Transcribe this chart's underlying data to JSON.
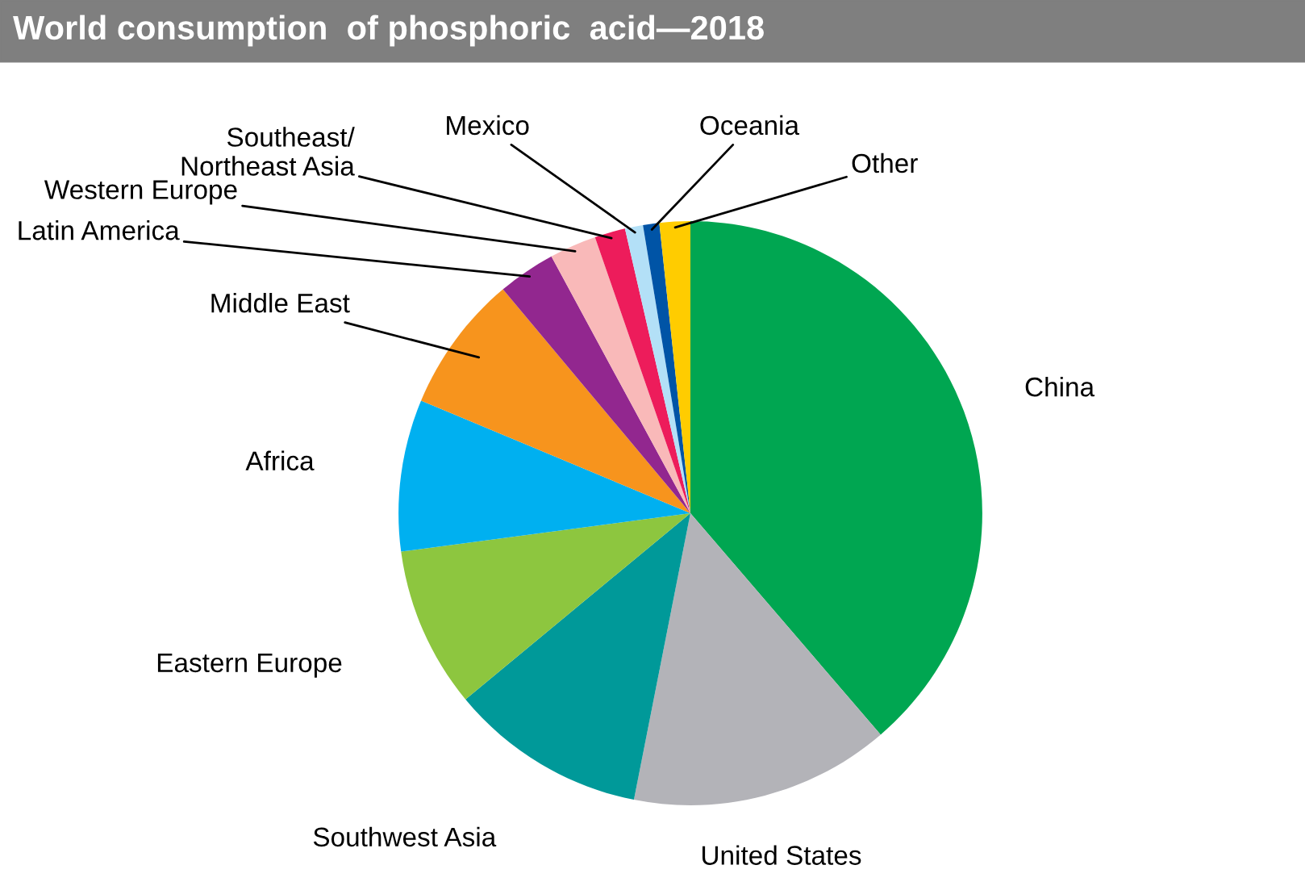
{
  "chart_data": {
    "type": "pie",
    "title": "World consumption  of phosphoric  acid—2018",
    "categories": [
      "China",
      "United States",
      "Southwest Asia",
      "Eastern Europe",
      "Africa",
      "Middle East",
      "Latin America",
      "Western Europe",
      "Southeast/\nNortheast Asia",
      "Mexico",
      "Oceania",
      "Other"
    ],
    "values": [
      38.7,
      14.4,
      10.9,
      8.9,
      8.4,
      7.6,
      3.2,
      2.6,
      1.7,
      1.0,
      0.9,
      1.7
    ],
    "colors": [
      "#00a651",
      "#b3b3b8",
      "#009999",
      "#8dc63f",
      "#00b0f0",
      "#f7941d",
      "#92278f",
      "#f9b9b9",
      "#ed1c5b",
      "#b3e0f7",
      "#0054a6",
      "#ffcc00"
    ]
  }
}
